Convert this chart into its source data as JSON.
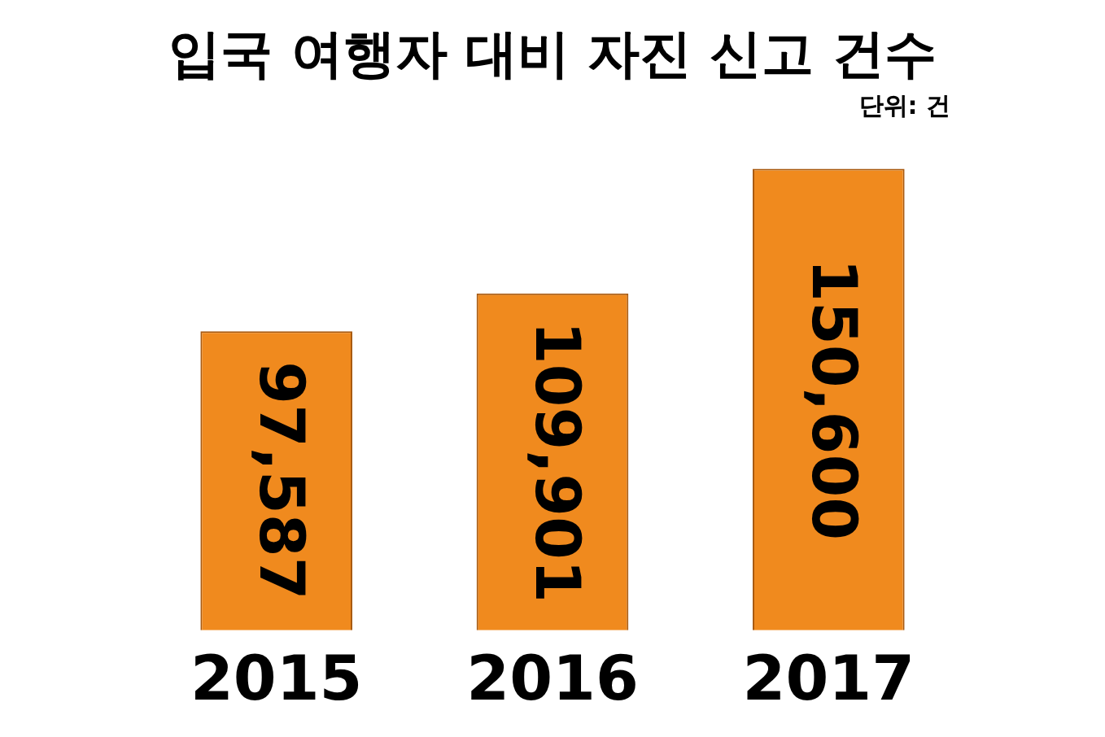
{
  "chart_data": {
    "type": "bar",
    "title": "입국 여행자 대비 자진 신고 건수",
    "annotations": [
      "단위: 건"
    ],
    "categories": [
      "2015",
      "2016",
      "2017"
    ],
    "values": [
      97587,
      109901,
      150600
    ],
    "value_labels": [
      "97,587",
      "109,901",
      "150,600"
    ],
    "color": "#f08a1e",
    "grid": false,
    "legend": false,
    "tick_labels": "x"
  }
}
